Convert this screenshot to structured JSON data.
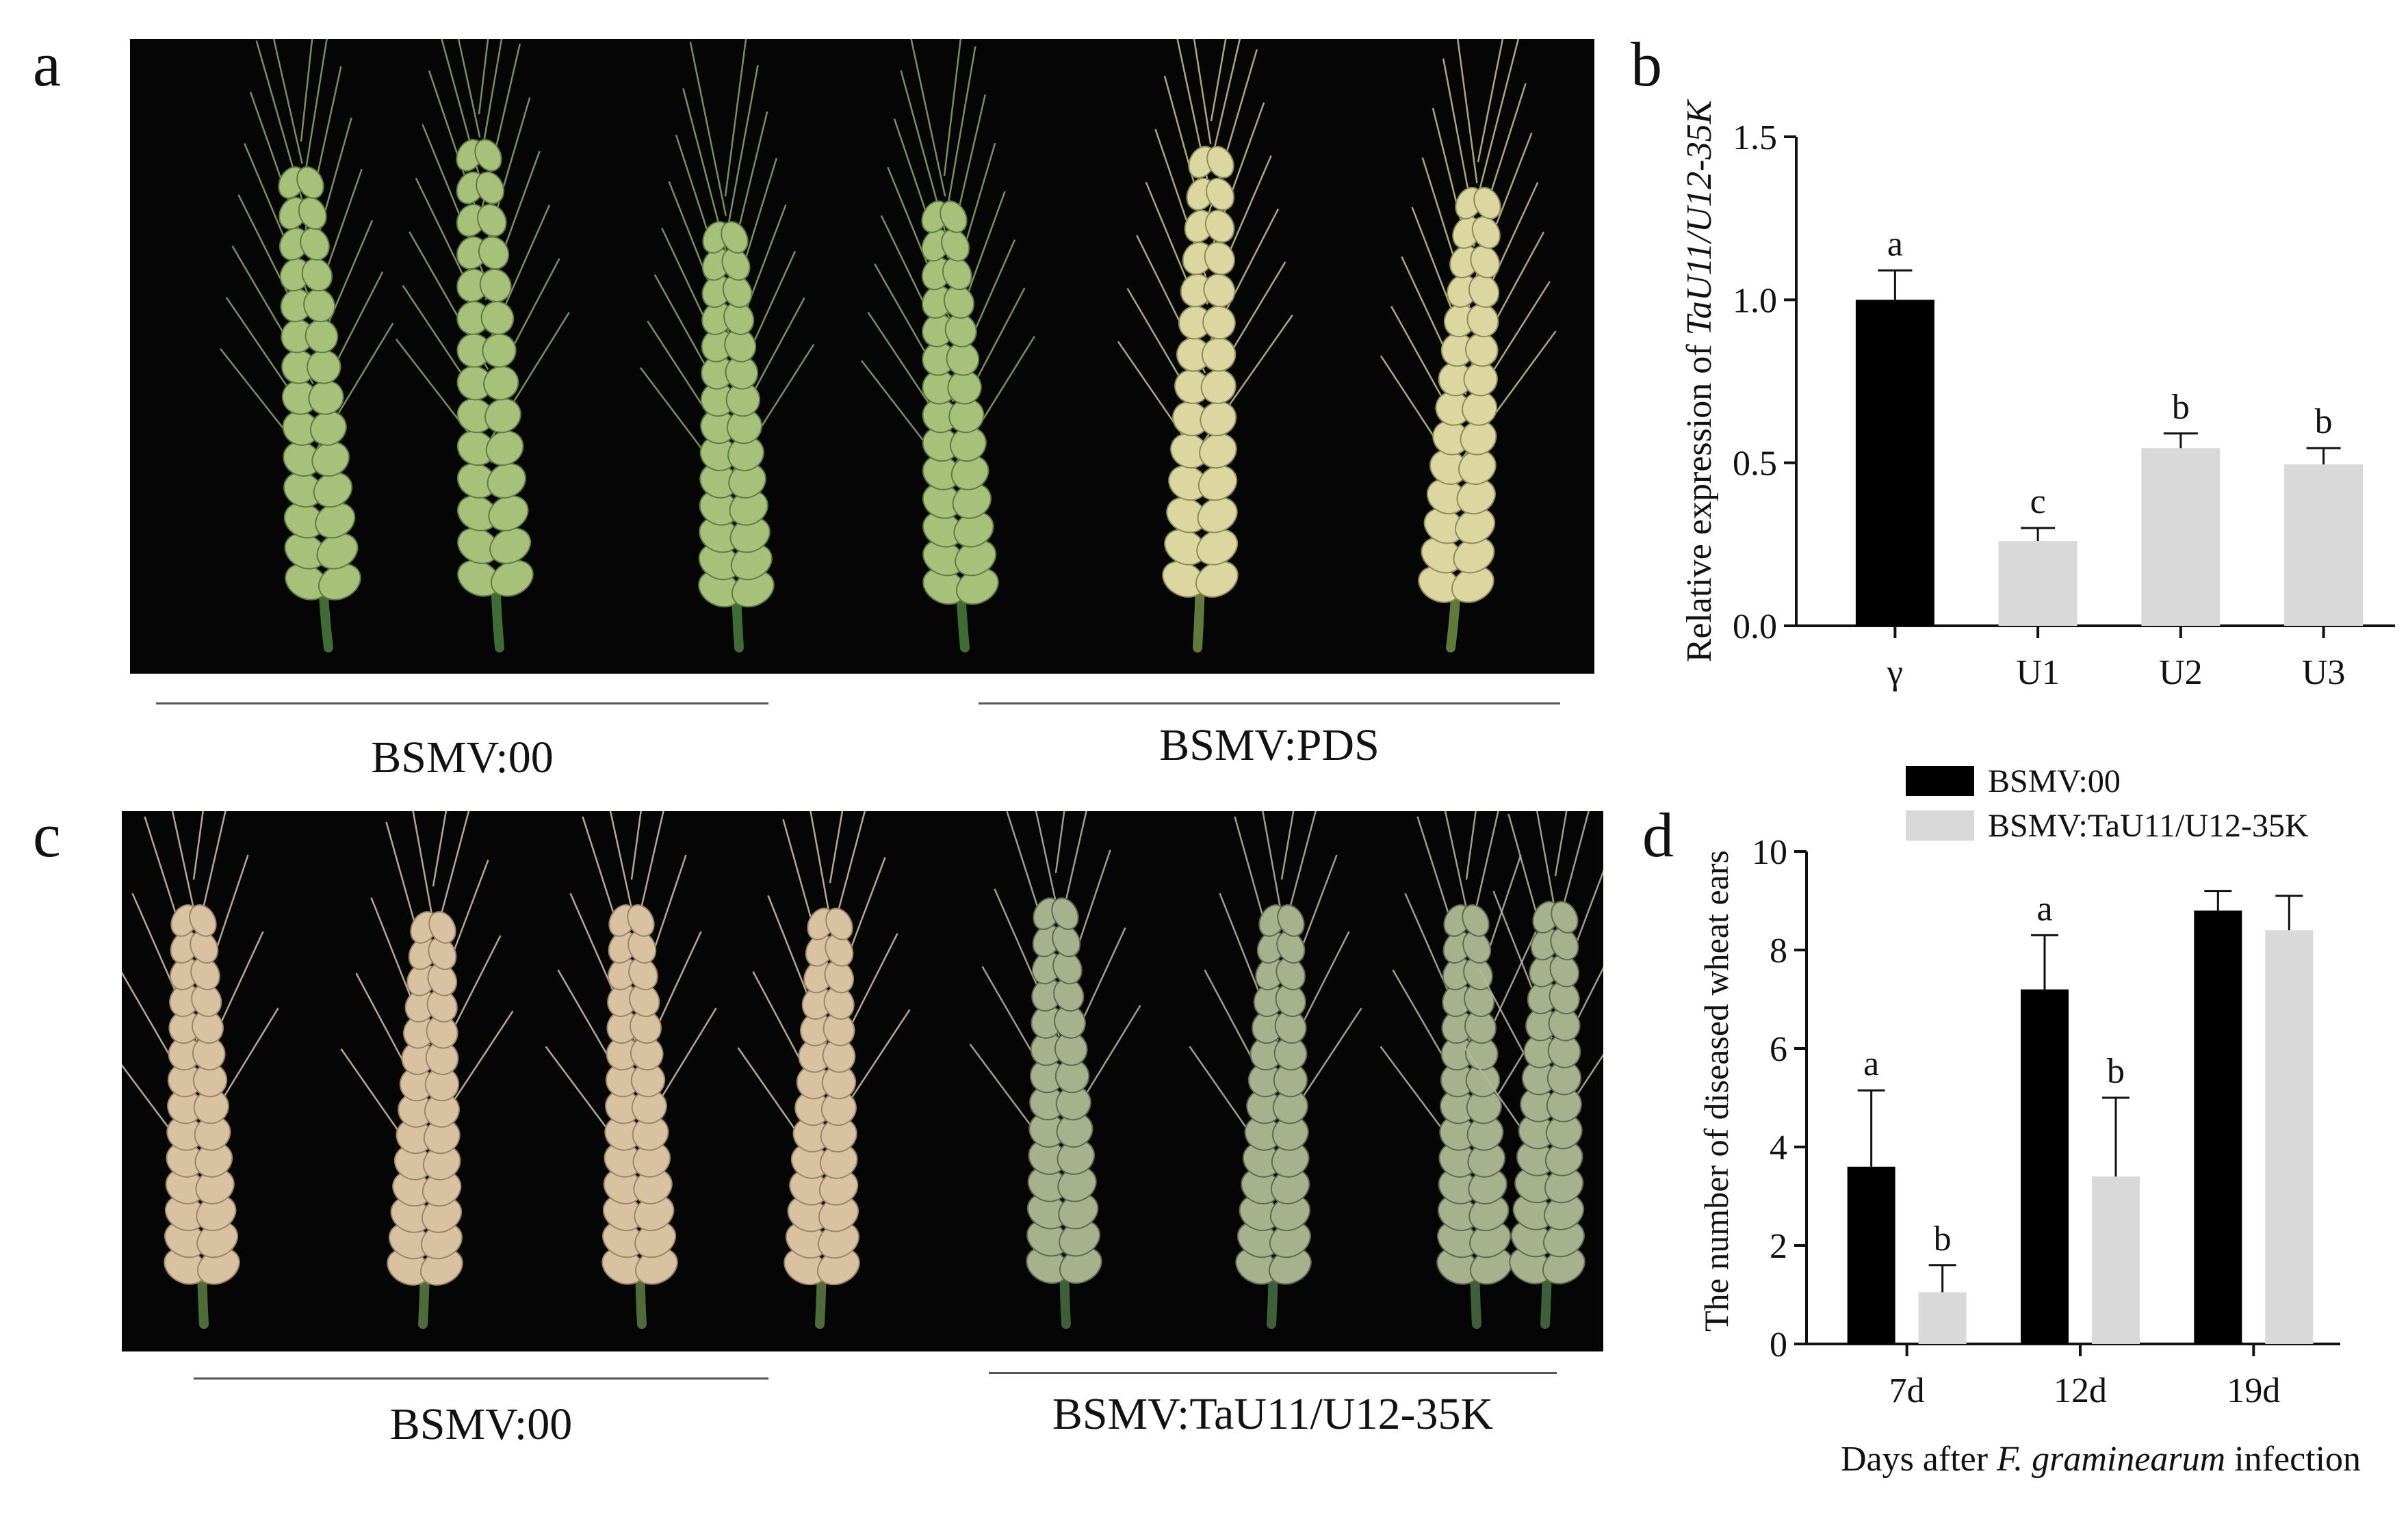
{
  "panel_a": {
    "letter": "a",
    "groups": [
      {
        "label": "BSMV:00"
      },
      {
        "label": "BSMV:PDS"
      }
    ]
  },
  "panel_b": {
    "letter": "b"
  },
  "panel_c": {
    "letter": "c",
    "groups": [
      {
        "label": "BSMV:00"
      },
      {
        "label": "BSMV:TaU11/U12-35K"
      }
    ]
  },
  "panel_d": {
    "letter": "d"
  },
  "chart_data": [
    {
      "type": "bar",
      "panel": "b",
      "categories": [
        "γ",
        "U1",
        "U2",
        "U3"
      ],
      "values": [
        1.0,
        0.26,
        0.545,
        0.495
      ],
      "errors": [
        0.09,
        0.04,
        0.045,
        0.05
      ],
      "significance": [
        "a",
        "c",
        "b",
        "b"
      ],
      "bar_colors": [
        "#000000",
        "#d9d9d9",
        "#d9d9d9",
        "#d9d9d9"
      ],
      "ylabel_prefix": "Relative expression of ",
      "ylabel_italic": "TaU11/U12-35K",
      "ylim": [
        0,
        1.5
      ],
      "yticks": [
        "0.0",
        "0.5",
        "1.0",
        "1.5"
      ],
      "grid": false
    },
    {
      "type": "bar",
      "panel": "d",
      "categories": [
        "7d",
        "12d",
        "19d"
      ],
      "series": [
        {
          "name": "BSMV:00",
          "color": "#000000",
          "values": [
            3.6,
            7.2,
            8.8
          ],
          "errors": [
            1.55,
            1.1,
            0.4
          ],
          "significance": [
            "a",
            "a",
            ""
          ]
        },
        {
          "name": "BSMV:TaU11/U12-35K",
          "color": "#d9d9d9",
          "values": [
            1.05,
            3.4,
            8.4
          ],
          "errors": [
            0.55,
            1.6,
            0.7
          ],
          "significance": [
            "b",
            "b",
            ""
          ]
        }
      ],
      "ylabel": "The number of diseased wheat ears",
      "xlabel_prefix": "Days after ",
      "xlabel_italic": "F. graminearum",
      "xlabel_suffix": " infection",
      "ylim": [
        0,
        10
      ],
      "yticks": [
        "0",
        "2",
        "4",
        "6",
        "8",
        "10"
      ],
      "legend_position": "top",
      "grid": false
    }
  ]
}
